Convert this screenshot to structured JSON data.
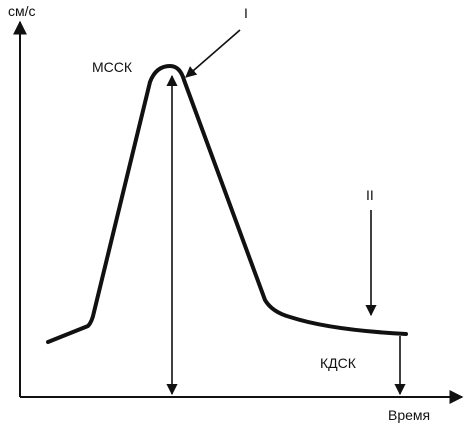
{
  "chart_data": {
    "type": "line",
    "ylabel": "см/с",
    "xlabel": "Время",
    "annotations": {
      "peak_label": "МССК",
      "end_label": "КДСК",
      "marker_1": "I",
      "marker_2": "II"
    },
    "colors": {
      "ink": "#111111",
      "background": "#ffffff"
    }
  }
}
